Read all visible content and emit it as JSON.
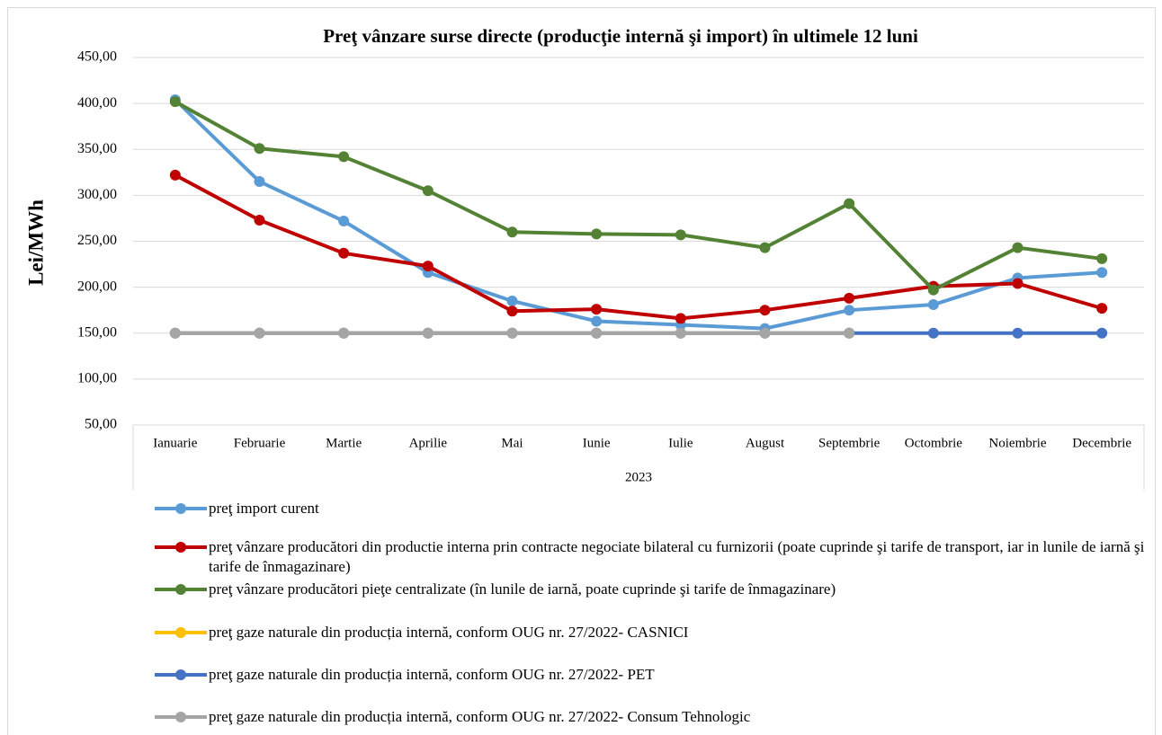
{
  "chart_data": {
    "type": "line",
    "title": "Preţ vânzare surse directe (producţie internă şi import) în ultimele 12 luni",
    "y_label": "Lei/MWh",
    "category_group": "2023",
    "categories": [
      "Ianuarie",
      "Februarie",
      "Martie",
      "Aprilie",
      "Mai",
      "Iunie",
      "Iulie",
      "August",
      "Septembrie",
      "Octombrie",
      "Noiembrie",
      "Decembrie"
    ],
    "series": [
      {
        "name": "preţ import curent",
        "color": "#5b9bd5",
        "values": [
          404,
          315,
          272,
          216,
          185,
          163,
          159,
          155,
          175,
          181,
          210,
          216
        ]
      },
      {
        "name": "preţ vânzare producători din productie interna prin contracte negociate bilateral cu furnizorii (poate cuprinde şi tarife de transport, iar in lunile de iarnă şi tarife de înmagazinare)",
        "color": "#c00000",
        "values": [
          322,
          273,
          237,
          223,
          174,
          176,
          166,
          175,
          188,
          201,
          204,
          177
        ]
      },
      {
        "name": "preţ vânzare producători pieţe centralizate (în lunile de iarnă, poate cuprinde şi tarife de înmagazinare)",
        "color": "#548235",
        "values": [
          402,
          351,
          342,
          305,
          260,
          258,
          257,
          243,
          291,
          197,
          243,
          231
        ]
      },
      {
        "name": "preţ gaze naturale din producția internă, conform OUG nr. 27/2022- CASNICI",
        "color": "#ffc000",
        "values": [
          150,
          150,
          150,
          150,
          150,
          150,
          150,
          150,
          150,
          null,
          null,
          null
        ]
      },
      {
        "name": "preţ gaze naturale din producția internă, conform OUG nr. 27/2022- PET",
        "color": "#4472c4",
        "values": [
          150,
          150,
          150,
          150,
          150,
          150,
          150,
          150,
          150,
          150,
          150,
          150
        ]
      },
      {
        "name": "preţ gaze naturale din producția internă, conform OUG nr. 27/2022- Consum Tehnologic",
        "color": "#a5a5a5",
        "values": [
          150,
          150,
          150,
          150,
          150,
          150,
          150,
          150,
          150,
          null,
          null,
          null
        ]
      }
    ],
    "ylim": [
      50,
      450
    ],
    "yticks": [
      {
        "value": 50,
        "label": "50,00"
      },
      {
        "value": 100,
        "label": "100,00"
      },
      {
        "value": 150,
        "label": "150,00"
      },
      {
        "value": 200,
        "label": "200,00"
      },
      {
        "value": 250,
        "label": "250,00"
      },
      {
        "value": 300,
        "label": "300,00"
      },
      {
        "value": 350,
        "label": "350,00"
      },
      {
        "value": 400,
        "label": "400,00"
      },
      {
        "value": 450,
        "label": "450,00"
      }
    ],
    "grid": true,
    "legend": "bottom"
  }
}
